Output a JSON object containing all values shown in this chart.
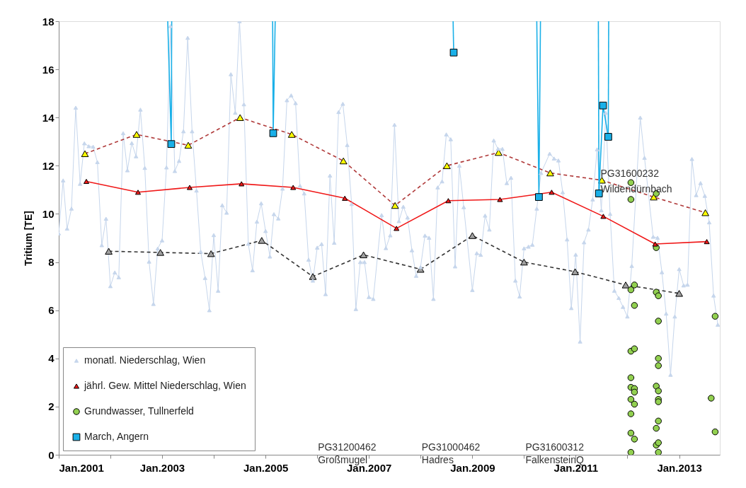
{
  "chart_data": {
    "type": "line",
    "ylabel": "Tritium [TE]",
    "xlim": [
      "2001-01-01",
      "2013-10-15"
    ],
    "ylim": [
      0,
      18
    ],
    "xticks": [
      {
        "value": "2001-01",
        "label": "Jan.2001"
      },
      {
        "value": "2002-01",
        "label": null
      },
      {
        "value": "2003-01",
        "label": "Jan.2003"
      },
      {
        "value": "2004-01",
        "label": null
      },
      {
        "value": "2005-01",
        "label": "Jan.2005"
      },
      {
        "value": "2006-01",
        "label": null
      },
      {
        "value": "2007-01",
        "label": "Jan.2007"
      },
      {
        "value": "2008-01",
        "label": null
      },
      {
        "value": "2009-01",
        "label": "Jan.2009"
      },
      {
        "value": "2010-01",
        "label": null
      },
      {
        "value": "2011-01",
        "label": "Jan.2011"
      },
      {
        "value": "2012-01",
        "label": null
      },
      {
        "value": "2013-01",
        "label": "Jan.2013"
      }
    ],
    "yticks": [
      0,
      2,
      4,
      6,
      8,
      10,
      12,
      14,
      16,
      18
    ],
    "grid": false,
    "legend": "bottom left",
    "annotations": [
      "PG31200462\nGroßmugel",
      "PG31000462\nHadres",
      "PG31600312\nFalkensteinQ",
      {
        "text": "PG31600232\nWildendürnbach",
        "x": "2011-06-25",
        "y": 11.85
      }
    ],
    "series": [
      {
        "name": "monatl. Niederschlag, Wien",
        "color": "#c6d6ec",
        "marker": "triangle",
        "line_style": "solid",
        "x": [
          "2001-01",
          "2001-02",
          "2001-03",
          "2001-04",
          "2001-05",
          "2001-06",
          "2001-07",
          "2001-08",
          "2001-09",
          "2001-10",
          "2001-11",
          "2001-12",
          "2002-01",
          "2002-02",
          "2002-03",
          "2002-04",
          "2002-05",
          "2002-06",
          "2002-07",
          "2002-08",
          "2002-09",
          "2002-10",
          "2002-11",
          "2002-12",
          "2003-01",
          "2003-02",
          "2003-03",
          "2003-04",
          "2003-05",
          "2003-06",
          "2003-07",
          "2003-08",
          "2003-09",
          "2003-10",
          "2003-11",
          "2003-12",
          "2004-01",
          "2004-02",
          "2004-03",
          "2004-04",
          "2004-05",
          "2004-06",
          "2004-07",
          "2004-08",
          "2004-09",
          "2004-10",
          "2004-11",
          "2004-12",
          "2005-01",
          "2005-02",
          "2005-03",
          "2005-04",
          "2005-05",
          "2005-06",
          "2005-07",
          "2005-08",
          "2005-09",
          "2005-10",
          "2005-11",
          "2005-12",
          "2006-01",
          "2006-02",
          "2006-03",
          "2006-04",
          "2006-05",
          "2006-06",
          "2006-07",
          "2006-08",
          "2006-09",
          "2006-10",
          "2006-11",
          "2006-12",
          "2007-01",
          "2007-02",
          "2007-04",
          "2007-05",
          "2007-06",
          "2007-07",
          "2007-08",
          "2007-09",
          "2007-10",
          "2007-11",
          "2007-12",
          "2008-01",
          "2008-02",
          "2008-03",
          "2008-04",
          "2008-05",
          "2008-06",
          "2008-07",
          "2008-08",
          "2008-09",
          "2008-10",
          "2008-11",
          "2009-01",
          "2009-02",
          "2009-03",
          "2009-04",
          "2009-05",
          "2009-06",
          "2009-07",
          "2009-08",
          "2009-09",
          "2009-10",
          "2009-11",
          "2009-12",
          "2010-01",
          "2010-02",
          "2010-03",
          "2010-04",
          "2010-05",
          "2010-07",
          "2010-08",
          "2010-09",
          "2010-10",
          "2010-11",
          "2010-12",
          "2011-01",
          "2011-02",
          "2011-03",
          "2011-04",
          "2011-05",
          "2011-06",
          "2011-07",
          "2011-08",
          "2011-09",
          "2011-10",
          "2011-11",
          "2011-12",
          "2012-01",
          "2012-02",
          "2012-04",
          "2012-05",
          "2012-07",
          "2012-08",
          "2012-09",
          "2012-10",
          "2012-11",
          "2012-12",
          "2013-01",
          "2013-02",
          "2013-03",
          "2013-04",
          "2013-05",
          "2013-06",
          "2013-07",
          "2013-08",
          "2013-09",
          "2013-10"
        ],
        "values": [
          9.19,
          11.39,
          9.39,
          10.22,
          14.41,
          11.25,
          12.93,
          12.81,
          12.79,
          12.15,
          8.7,
          9.8,
          7.0,
          7.57,
          7.37,
          13.35,
          11.81,
          12.94,
          12.39,
          14.33,
          11.91,
          8.02,
          6.26,
          8.56,
          8.9,
          11.93,
          17.8,
          11.78,
          12.2,
          13.43,
          17.31,
          13.43,
          10.97,
          8.43,
          7.34,
          6.0,
          9.12,
          6.81,
          10.36,
          10.05,
          15.8,
          14.2,
          18.0,
          14.55,
          8.76,
          7.66,
          9.68,
          10.44,
          9.29,
          8.23,
          9.99,
          9.81,
          11.05,
          14.72,
          14.92,
          14.6,
          11.17,
          10.85,
          8.1,
          7.23,
          8.6,
          8.75,
          6.67,
          11.59,
          8.8,
          14.23,
          14.57,
          12.86,
          10.41,
          6.05,
          8.0,
          8.0,
          6.55,
          6.47,
          9.95,
          8.58,
          9.11,
          13.7,
          9.7,
          10.3,
          9.85,
          8.49,
          7.43,
          7.79,
          9.1,
          9.01,
          6.47,
          11.1,
          11.35,
          13.3,
          13.1,
          7.82,
          12.0,
          10.28,
          6.84,
          8.37,
          8.3,
          9.93,
          9.35,
          13.05,
          12.7,
          12.7,
          11.28,
          11.5,
          7.23,
          6.57,
          8.57,
          8.64,
          8.72,
          10.22,
          11.7,
          12.5,
          12.3,
          12.22,
          10.9,
          8.94,
          6.09,
          8.31,
          4.7,
          8.82,
          9.35,
          10.6,
          12.68,
          10.15,
          14.2,
          10.0,
          6.81,
          6.51,
          6.14,
          5.74,
          7.84,
          14.0,
          12.33,
          9.05,
          9.01,
          7.58,
          5.86,
          3.32,
          5.74,
          7.71,
          7.03,
          7.06,
          12.28,
          10.78,
          11.28,
          10.75,
          9.65,
          6.61,
          5.4
        ]
      },
      {
        "color": "#b03a3a",
        "marker": "none",
        "line_style": "dashed",
        "x": [
          "2001-07-05",
          "2002-07-05",
          "2003-07-05",
          "2004-07-05",
          "2005-07-05",
          "2006-07-05",
          "2007-07-05",
          "2008-07-05",
          "2009-07-05",
          "2010-07-05",
          "2011-07-05",
          "2012-07-05",
          "2013-07-05"
        ],
        "values": [
          12.5,
          13.3,
          12.85,
          14.0,
          13.3,
          12.2,
          10.35,
          12.0,
          12.55,
          11.7,
          11.4,
          10.7,
          10.05
        ]
      },
      {
        "type": "scatter",
        "color": "#ffff00",
        "marker": "triangle",
        "x": [
          "2001-07-05",
          "2002-07-05",
          "2003-07-05",
          "2004-07-05",
          "2005-07-05",
          "2006-07-05",
          "2007-07-05",
          "2008-07-05",
          "2009-07-05",
          "2010-07-05",
          "2011-07-05",
          "2012-07-05",
          "2013-07-05"
        ],
        "values": [
          12.5,
          13.3,
          12.85,
          14.0,
          13.3,
          12.2,
          10.35,
          12.0,
          12.55,
          11.7,
          11.4,
          10.7,
          10.05
        ]
      },
      {
        "color": "#333333",
        "marker": "none",
        "line_style": "dashed",
        "x": [
          "2001-12-20",
          "2002-12-20",
          "2003-12-13",
          "2004-12-05",
          "2005-12-01",
          "2006-11-24",
          "2008-01-01",
          "2009-01-01",
          "2010-01-01",
          "2010-12-28",
          "2011-12-20",
          "2013-01-01"
        ],
        "values": [
          8.45,
          8.4,
          8.35,
          8.9,
          7.4,
          8.3,
          7.7,
          9.1,
          8.0,
          7.6,
          7.05,
          6.7
        ]
      },
      {
        "type": "scatter",
        "color": "#a0a0a0",
        "marker": "triangle",
        "x": [
          "2001-12-20",
          "2002-12-20",
          "2003-12-13",
          "2004-12-05",
          "2005-12-01",
          "2006-11-24",
          "2008-01-01",
          "2009-01-01",
          "2010-01-01",
          "2010-12-28",
          "2011-12-20",
          "2013-01-01"
        ],
        "values": [
          8.45,
          8.4,
          8.35,
          8.9,
          7.4,
          8.3,
          7.7,
          9.1,
          8.0,
          7.6,
          7.05,
          6.7
        ]
      },
      {
        "name": "jährl. Gew. Mittel Niederschlag, Wien",
        "color": "#f01818",
        "marker": "triangle",
        "line_style": "solid",
        "x": [
          "2001-07-15",
          "2002-07-15",
          "2003-07-15",
          "2004-07-15",
          "2005-07-15",
          "2006-07-15",
          "2007-07-15",
          "2008-07-15",
          "2009-07-15",
          "2010-07-15",
          "2011-07-15",
          "2012-07-15",
          "2013-07-15"
        ],
        "values": [
          11.35,
          10.9,
          11.1,
          11.25,
          11.1,
          10.65,
          9.4,
          10.55,
          10.6,
          10.9,
          9.9,
          8.75,
          8.85
        ]
      },
      {
        "name": "Grundwasser, Tullnerfeld",
        "type": "scatter",
        "color": "#92d050",
        "marker": "circle",
        "x": [
          "2012-01-26",
          "2012-01-26",
          "2012-01-26",
          "2012-01-26",
          "2012-01-26",
          "2012-01-26",
          "2012-01-26",
          "2012-01-26",
          "2012-01-26",
          "2012-01-26",
          "2012-02-20",
          "2012-02-20",
          "2012-02-20",
          "2012-02-20",
          "2012-02-20",
          "2012-02-20",
          "2012-02-20",
          "2012-07-23",
          "2012-07-23",
          "2012-07-23",
          "2012-07-23",
          "2012-07-23",
          "2012-07-23",
          "2012-08-07",
          "2012-08-07",
          "2012-08-07",
          "2012-08-07",
          "2012-08-07",
          "2012-08-07",
          "2012-08-07",
          "2012-08-07",
          "2012-08-07",
          "2012-08-07",
          "2013-08-15",
          "2013-09-12",
          "2013-09-12"
        ],
        "values": [
          11.3,
          10.6,
          6.85,
          4.3,
          3.2,
          2.8,
          2.3,
          1.7,
          0.9,
          0.1,
          7.05,
          6.2,
          4.4,
          2.75,
          2.6,
          2.1,
          0.65,
          8.6,
          6.75,
          2.85,
          0.4,
          10.85,
          1.1,
          6.6,
          5.55,
          4.0,
          3.7,
          2.65,
          2.3,
          2.2,
          1.4,
          0.5,
          0.1,
          2.35,
          5.75,
          0.95
        ]
      },
      {
        "name": "March, Angern",
        "color": "#1ab0e8",
        "marker": "square",
        "line_style": "solid",
        "x": [
          "2003-03-07",
          null,
          "2005-02-24",
          null,
          "2008-08-22",
          null,
          "2010-04-16",
          null,
          "2011-06-14",
          "2011-07-13",
          "2011-08-19"
        ],
        "values": [
          12.9,
          null,
          13.35,
          null,
          16.7,
          null,
          10.7,
          null,
          10.85,
          14.5,
          13.2
        ]
      },
      {
        "color": "#1ab0e8",
        "marker": "none",
        "line_style": "solid",
        "x": [
          "2003-02-10",
          "2003-03-07",
          "2003-03-10",
          null,
          "2005-02-20",
          "2005-02-24",
          "2005-03-10",
          null,
          "2008-08-18",
          "2008-08-22",
          null,
          "2010-04-01",
          "2010-04-16",
          "2010-04-27",
          null,
          "2011-06-10",
          "2011-06-14",
          null,
          "2011-08-19",
          "2011-08-22"
        ],
        "values": [
          18,
          12.9,
          18,
          null,
          18,
          13.35,
          18,
          null,
          18,
          16.7,
          null,
          18,
          10.7,
          18,
          null,
          18,
          10.85,
          null,
          13.2,
          18
        ]
      }
    ]
  }
}
